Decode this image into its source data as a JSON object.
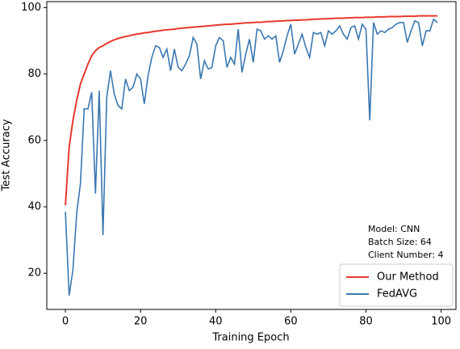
{
  "chart_data": {
    "type": "line",
    "xlabel": "Training Epoch",
    "ylabel": "Test Accuracy",
    "annotations": [
      "Model: CNN",
      "Batch Size: 64",
      "Client Number: 4"
    ],
    "legend": "lower right",
    "xlim": [
      -4.95,
      103.95
    ],
    "ylim": [
      9.1,
      101.8
    ],
    "xticks": [
      0,
      20,
      40,
      60,
      80,
      100
    ],
    "yticks": [
      20,
      40,
      60,
      80,
      100
    ],
    "x": [
      0,
      1,
      2,
      3,
      4,
      5,
      6,
      7,
      8,
      9,
      10,
      11,
      12,
      13,
      14,
      15,
      16,
      17,
      18,
      19,
      20,
      21,
      22,
      23,
      24,
      25,
      26,
      27,
      28,
      29,
      30,
      31,
      32,
      33,
      34,
      35,
      36,
      37,
      38,
      39,
      40,
      41,
      42,
      43,
      44,
      45,
      46,
      47,
      48,
      49,
      50,
      51,
      52,
      53,
      54,
      55,
      56,
      57,
      58,
      59,
      60,
      61,
      62,
      63,
      64,
      65,
      66,
      67,
      68,
      69,
      70,
      71,
      72,
      73,
      74,
      75,
      76,
      77,
      78,
      79,
      80,
      81,
      82,
      83,
      84,
      85,
      86,
      87,
      88,
      89,
      90,
      91,
      92,
      93,
      94,
      95,
      96,
      97,
      98,
      99
    ],
    "series": [
      {
        "name": "Our Method",
        "color": "#e8392e",
        "values": [
          40.5,
          58,
          66,
          72,
          77,
          80,
          83,
          85.5,
          87,
          88,
          88.5,
          89.2,
          89.8,
          90.3,
          90.7,
          91,
          91.3,
          91.5,
          91.8,
          92,
          92.2,
          92.4,
          92.5,
          92.7,
          92.9,
          93,
          93.2,
          93.3,
          93.4,
          93.5,
          93.7,
          93.8,
          93.9,
          94,
          94.1,
          94.2,
          94.3,
          94.4,
          94.5,
          94.6,
          94.7,
          94.8,
          94.9,
          95,
          95,
          95.1,
          95.2,
          95.3,
          95.4,
          95.4,
          95.5,
          95.6,
          95.6,
          95.7,
          95.8,
          95.8,
          95.9,
          96,
          96,
          96.1,
          96.1,
          96.2,
          96.2,
          96.3,
          96.3,
          96.4,
          96.5,
          96.5,
          96.6,
          96.6,
          96.7,
          96.7,
          96.8,
          96.8,
          96.8,
          96.9,
          96.9,
          97,
          97,
          97,
          97.1,
          97.1,
          97.1,
          97.2,
          97.2,
          97.2,
          97.3,
          97.3,
          97.3,
          97.3,
          97.4,
          97.4,
          97.4,
          97.4,
          97.5,
          97.5,
          97.5,
          97.5,
          97.5,
          97.5
        ]
      },
      {
        "name": "FedAVG",
        "color": "#3a77b0",
        "values": [
          38.5,
          13.3,
          21,
          38,
          47,
          69.5,
          69.5,
          74.5,
          44,
          75,
          31.5,
          73,
          81,
          74,
          70.5,
          69.5,
          78.5,
          75,
          76,
          80,
          78.5,
          71,
          79.5,
          85,
          88.5,
          88,
          85,
          87.5,
          81,
          87.5,
          82,
          81,
          83,
          85.5,
          91,
          89,
          78.5,
          84,
          81.5,
          82,
          88.5,
          91,
          90,
          82,
          85,
          83,
          93.5,
          80.5,
          86,
          90.5,
          83.5,
          93.5,
          93,
          90.5,
          91.5,
          90.5,
          91.5,
          83.5,
          87,
          91.5,
          95,
          86,
          89,
          92,
          88,
          85,
          92.5,
          92,
          92.5,
          88.5,
          93,
          92,
          93,
          94.5,
          92,
          90.5,
          94,
          94.5,
          90.5,
          95,
          93.5,
          66,
          95.5,
          92,
          93,
          92.5,
          93.5,
          94,
          95,
          95.5,
          95.5,
          89.5,
          93,
          96,
          95.5,
          88.5,
          93,
          93,
          96.5,
          95.5
        ]
      }
    ]
  }
}
